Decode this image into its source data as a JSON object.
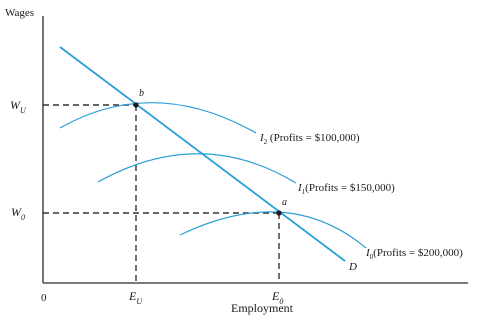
{
  "diagram": {
    "y_axis_label": "Wages",
    "x_axis_label": "Employment",
    "origin_label": "0",
    "y_ticks": {
      "wu": {
        "main": "W",
        "sub": "U"
      },
      "w0": {
        "main": "W",
        "sub": "0"
      }
    },
    "x_ticks": {
      "eu": {
        "main": "E",
        "sub": "U"
      },
      "e0": {
        "main": "E",
        "sub": "0"
      }
    },
    "points": {
      "a": "a",
      "b": "b"
    },
    "demand": {
      "label": "D"
    },
    "indifference_curves": [
      {
        "main": "I",
        "sub": "2",
        "text": " (Profits = $100,000)"
      },
      {
        "main": "I",
        "sub": "1",
        "text": "(Profits = $150,000)"
      },
      {
        "main": "I",
        "sub": "0",
        "text": "(Profits = $200,000)"
      }
    ],
    "colors": {
      "axis": "#2a2a2a",
      "curve": "#2a9fd6",
      "dashed": "#333333"
    }
  }
}
